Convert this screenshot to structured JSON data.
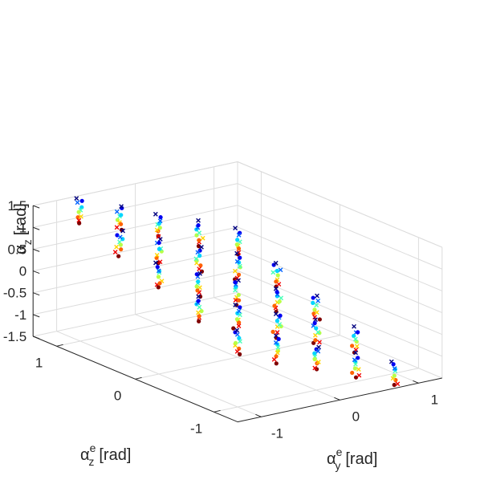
{
  "chart_data": {
    "type": "scatter3d",
    "title": "",
    "axes": {
      "x": {
        "label": "α",
        "label_sup": "e",
        "label_sub": "y",
        "unit": "[rad]",
        "range": [
          -1.3,
          1.3
        ],
        "ticks": [
          -1,
          0,
          1
        ],
        "tick_labels": [
          "-1",
          "0",
          "1"
        ]
      },
      "y": {
        "label": "α",
        "label_sup": "e",
        "label_sub": "z",
        "unit": "[rad]",
        "range": [
          -1.3,
          1.3
        ],
        "ticks": [
          -1,
          0,
          1
        ],
        "tick_labels": [
          "-1",
          "0",
          "1"
        ]
      },
      "z": {
        "label": "α",
        "label_sub": "z",
        "unit": "[rad]",
        "range": [
          -1.5,
          1.5
        ],
        "ticks": [
          -1.5,
          -1,
          -0.5,
          0,
          0.5,
          1,
          1.5
        ],
        "tick_labels": [
          "-1.5",
          "-1",
          "-0.5",
          "0",
          "0.5",
          "1",
          "1.5"
        ]
      }
    },
    "grid": true,
    "marker_styles": [
      "dot",
      "cross"
    ],
    "colormap": "jet",
    "clusters": {
      "x_centers": [
        -1,
        -0.5,
        0,
        0.5,
        1
      ],
      "y_centers": [
        -1,
        -0.5,
        0,
        0.5,
        1
      ]
    }
  }
}
